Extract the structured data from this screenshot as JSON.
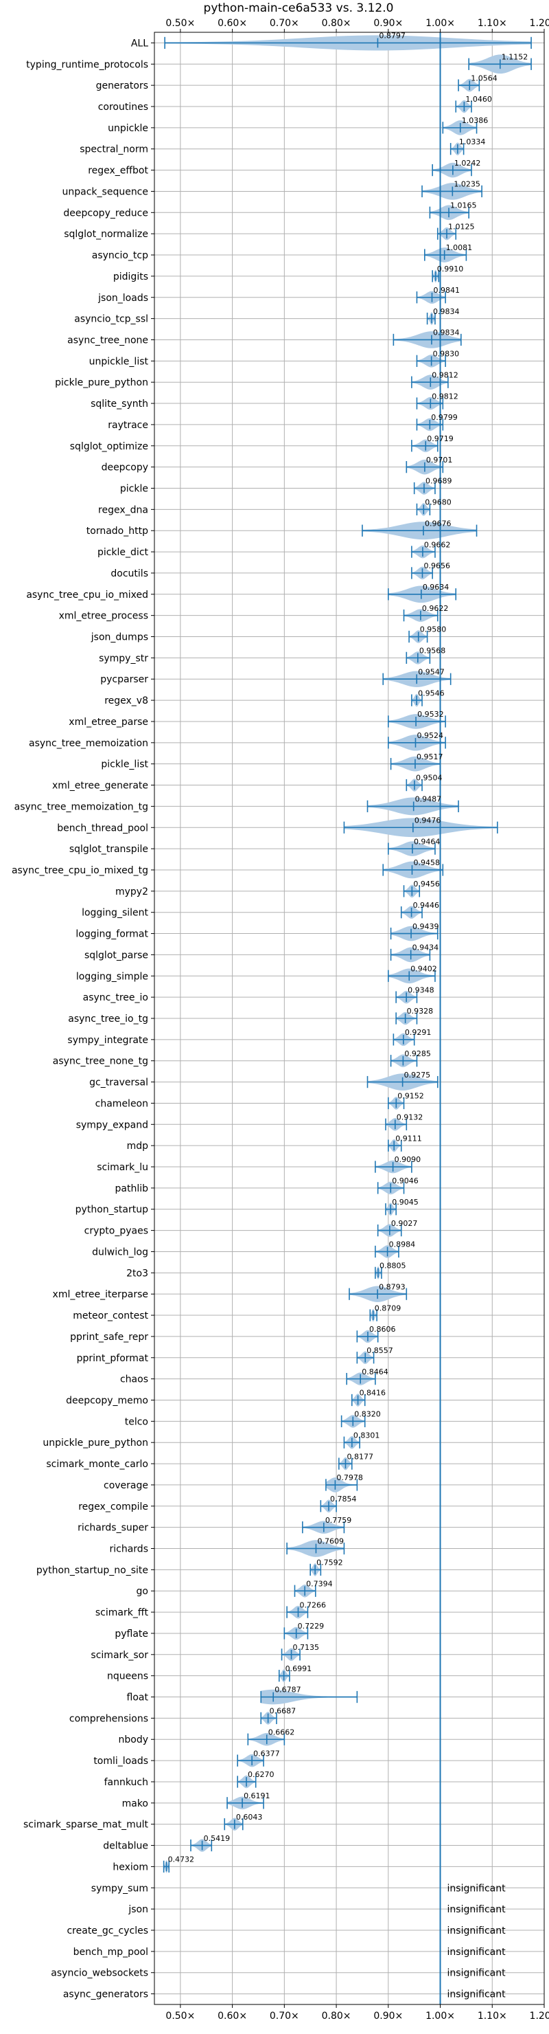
{
  "chart_data": {
    "type": "violin",
    "title": "python-main-ce6a533 vs. 3.12.0",
    "xlim": [
      0.45,
      1.2
    ],
    "xticks": [
      0.5,
      0.6,
      0.7,
      0.8,
      0.9,
      1.0,
      1.1,
      1.2
    ],
    "xtick_labels": [
      "0.50×",
      "0.60×",
      "0.70×",
      "0.80×",
      "0.90×",
      "1.00×",
      "1.10×",
      "1.20×"
    ],
    "reference_line": 1.0,
    "grid": true,
    "insignificant_text": "insignificant",
    "colors": {
      "violin": "#aecbe5",
      "whisker": "#1f77b4",
      "reference": "#1f77b4"
    },
    "benchmarks": [
      {
        "name": "ALL",
        "label": "0.8797",
        "value": 0.8797,
        "min": 0.47,
        "max": 1.175,
        "half_width": 0.36
      },
      {
        "name": "typing_runtime_protocols",
        "label": "1.1152",
        "value": 1.1152,
        "min": 1.055,
        "max": 1.175,
        "half_width": 0.45
      },
      {
        "name": "generators",
        "label": "1.0564",
        "value": 1.0564,
        "min": 1.035,
        "max": 1.075,
        "half_width": 0.3
      },
      {
        "name": "coroutines",
        "label": "1.0460",
        "value": 1.046,
        "min": 1.03,
        "max": 1.06,
        "half_width": 0.3
      },
      {
        "name": "unpickle",
        "label": "1.0386",
        "value": 1.0386,
        "min": 1.005,
        "max": 1.07,
        "half_width": 0.35
      },
      {
        "name": "spectral_norm",
        "label": "1.0334",
        "value": 1.0334,
        "min": 1.02,
        "max": 1.045,
        "half_width": 0.3
      },
      {
        "name": "regex_effbot",
        "label": "1.0242",
        "value": 1.0242,
        "min": 0.985,
        "max": 1.06,
        "half_width": 0.35
      },
      {
        "name": "unpack_sequence",
        "label": "1.0235",
        "value": 1.0235,
        "min": 0.965,
        "max": 1.08,
        "half_width": 0.4
      },
      {
        "name": "deepcopy_reduce",
        "label": "1.0165",
        "value": 1.0165,
        "min": 0.98,
        "max": 1.055,
        "half_width": 0.35
      },
      {
        "name": "sqlglot_normalize",
        "label": "1.0125",
        "value": 1.0125,
        "min": 0.995,
        "max": 1.03,
        "half_width": 0.3
      },
      {
        "name": "asyncio_tcp",
        "label": "1.0081",
        "value": 1.0081,
        "min": 0.97,
        "max": 1.05,
        "half_width": 0.35
      },
      {
        "name": "pidigits",
        "label": "0.9910",
        "value": 0.991,
        "min": 0.985,
        "max": 0.997,
        "half_width": 0.3
      },
      {
        "name": "json_loads",
        "label": "0.9841",
        "value": 0.9841,
        "min": 0.955,
        "max": 1.01,
        "half_width": 0.3
      },
      {
        "name": "asyncio_tcp_ssl",
        "label": "0.9834",
        "value": 0.9834,
        "min": 0.975,
        "max": 0.99,
        "half_width": 0.3
      },
      {
        "name": "async_tree_none",
        "label": "0.9834",
        "value": 0.9834,
        "min": 0.91,
        "max": 1.04,
        "half_width": 0.4
      },
      {
        "name": "unpickle_list",
        "label": "0.9830",
        "value": 0.983,
        "min": 0.955,
        "max": 1.01,
        "half_width": 0.3
      },
      {
        "name": "pickle_pure_python",
        "label": "0.9812",
        "value": 0.9812,
        "min": 0.945,
        "max": 1.015,
        "half_width": 0.35
      },
      {
        "name": "sqlite_synth",
        "label": "0.9812",
        "value": 0.9812,
        "min": 0.955,
        "max": 1.005,
        "half_width": 0.3
      },
      {
        "name": "raytrace",
        "label": "0.9799",
        "value": 0.9799,
        "min": 0.955,
        "max": 1.005,
        "half_width": 0.3
      },
      {
        "name": "sqlglot_optimize",
        "label": "0.9719",
        "value": 0.9719,
        "min": 0.945,
        "max": 0.995,
        "half_width": 0.3
      },
      {
        "name": "deepcopy",
        "label": "0.9701",
        "value": 0.9701,
        "min": 0.935,
        "max": 1.005,
        "half_width": 0.35
      },
      {
        "name": "pickle",
        "label": "0.9689",
        "value": 0.9689,
        "min": 0.95,
        "max": 0.99,
        "half_width": 0.3
      },
      {
        "name": "regex_dna",
        "label": "0.9680",
        "value": 0.968,
        "min": 0.955,
        "max": 0.98,
        "half_width": 0.3
      },
      {
        "name": "tornado_http",
        "label": "0.9676",
        "value": 0.9676,
        "min": 0.85,
        "max": 1.07,
        "half_width": 0.42
      },
      {
        "name": "pickle_dict",
        "label": "0.9662",
        "value": 0.9662,
        "min": 0.945,
        "max": 0.99,
        "half_width": 0.3
      },
      {
        "name": "docutils",
        "label": "0.9656",
        "value": 0.9656,
        "min": 0.945,
        "max": 0.985,
        "half_width": 0.3
      },
      {
        "name": "async_tree_cpu_io_mixed",
        "label": "0.9634",
        "value": 0.9634,
        "min": 0.9,
        "max": 1.03,
        "half_width": 0.4
      },
      {
        "name": "xml_etree_process",
        "label": "0.9622",
        "value": 0.9622,
        "min": 0.93,
        "max": 0.995,
        "half_width": 0.3
      },
      {
        "name": "json_dumps",
        "label": "0.9580",
        "value": 0.958,
        "min": 0.94,
        "max": 0.975,
        "half_width": 0.3
      },
      {
        "name": "sympy_str",
        "label": "0.9568",
        "value": 0.9568,
        "min": 0.935,
        "max": 0.98,
        "half_width": 0.3
      },
      {
        "name": "pycparser",
        "label": "0.9547",
        "value": 0.9547,
        "min": 0.89,
        "max": 1.02,
        "half_width": 0.38
      },
      {
        "name": "regex_v8",
        "label": "0.9546",
        "value": 0.9546,
        "min": 0.945,
        "max": 0.965,
        "half_width": 0.3
      },
      {
        "name": "xml_etree_parse",
        "label": "0.9532",
        "value": 0.9532,
        "min": 0.9,
        "max": 1.01,
        "half_width": 0.35
      },
      {
        "name": "async_tree_memoization",
        "label": "0.9524",
        "value": 0.9524,
        "min": 0.9,
        "max": 1.01,
        "half_width": 0.38
      },
      {
        "name": "pickle_list",
        "label": "0.9517",
        "value": 0.9517,
        "min": 0.905,
        "max": 1.0,
        "half_width": 0.35
      },
      {
        "name": "xml_etree_generate",
        "label": "0.9504",
        "value": 0.9504,
        "min": 0.935,
        "max": 0.965,
        "half_width": 0.3
      },
      {
        "name": "async_tree_memoization_tg",
        "label": "0.9487",
        "value": 0.9487,
        "min": 0.86,
        "max": 1.035,
        "half_width": 0.42
      },
      {
        "name": "bench_thread_pool",
        "label": "0.9476",
        "value": 0.9476,
        "min": 0.815,
        "max": 1.11,
        "half_width": 0.45
      },
      {
        "name": "sqlglot_transpile",
        "label": "0.9464",
        "value": 0.9464,
        "min": 0.9,
        "max": 0.99,
        "half_width": 0.35
      },
      {
        "name": "async_tree_cpu_io_mixed_tg",
        "label": "0.9458",
        "value": 0.9458,
        "min": 0.89,
        "max": 1.005,
        "half_width": 0.4
      },
      {
        "name": "mypy2",
        "label": "0.9456",
        "value": 0.9456,
        "min": 0.93,
        "max": 0.96,
        "half_width": 0.3
      },
      {
        "name": "logging_silent",
        "label": "0.9446",
        "value": 0.9446,
        "min": 0.925,
        "max": 0.965,
        "half_width": 0.3
      },
      {
        "name": "logging_format",
        "label": "0.9439",
        "value": 0.9439,
        "min": 0.905,
        "max": 0.995,
        "half_width": 0.35
      },
      {
        "name": "sqlglot_parse",
        "label": "0.9434",
        "value": 0.9434,
        "min": 0.905,
        "max": 0.98,
        "half_width": 0.35
      },
      {
        "name": "logging_simple",
        "label": "0.9402",
        "value": 0.9402,
        "min": 0.9,
        "max": 0.99,
        "half_width": 0.35
      },
      {
        "name": "async_tree_io",
        "label": "0.9348",
        "value": 0.9348,
        "min": 0.915,
        "max": 0.955,
        "half_width": 0.3
      },
      {
        "name": "async_tree_io_tg",
        "label": "0.9328",
        "value": 0.9328,
        "min": 0.915,
        "max": 0.955,
        "half_width": 0.3
      },
      {
        "name": "sympy_integrate",
        "label": "0.9291",
        "value": 0.9291,
        "min": 0.91,
        "max": 0.95,
        "half_width": 0.3
      },
      {
        "name": "async_tree_none_tg",
        "label": "0.9285",
        "value": 0.9285,
        "min": 0.905,
        "max": 0.955,
        "half_width": 0.3
      },
      {
        "name": "gc_traversal",
        "label": "0.9275",
        "value": 0.9275,
        "min": 0.86,
        "max": 0.995,
        "half_width": 0.4
      },
      {
        "name": "chameleon",
        "label": "0.9152",
        "value": 0.9152,
        "min": 0.9,
        "max": 0.93,
        "half_width": 0.3
      },
      {
        "name": "sympy_expand",
        "label": "0.9132",
        "value": 0.9132,
        "min": 0.895,
        "max": 0.935,
        "half_width": 0.3
      },
      {
        "name": "mdp",
        "label": "0.9111",
        "value": 0.9111,
        "min": 0.9,
        "max": 0.925,
        "half_width": 0.3
      },
      {
        "name": "scimark_lu",
        "label": "0.9090",
        "value": 0.909,
        "min": 0.875,
        "max": 0.945,
        "half_width": 0.3
      },
      {
        "name": "pathlib",
        "label": "0.9046",
        "value": 0.9046,
        "min": 0.88,
        "max": 0.93,
        "half_width": 0.3
      },
      {
        "name": "python_startup",
        "label": "0.9045",
        "value": 0.9045,
        "min": 0.895,
        "max": 0.915,
        "half_width": 0.3
      },
      {
        "name": "crypto_pyaes",
        "label": "0.9027",
        "value": 0.9027,
        "min": 0.88,
        "max": 0.925,
        "half_width": 0.3
      },
      {
        "name": "dulwich_log",
        "label": "0.8984",
        "value": 0.8984,
        "min": 0.875,
        "max": 0.92,
        "half_width": 0.3
      },
      {
        "name": "2to3",
        "label": "0.8805",
        "value": 0.8805,
        "min": 0.875,
        "max": 0.887,
        "half_width": 0.3
      },
      {
        "name": "xml_etree_iterparse",
        "label": "0.8793",
        "value": 0.8793,
        "min": 0.825,
        "max": 0.935,
        "half_width": 0.38
      },
      {
        "name": "meteor_contest",
        "label": "0.8709",
        "value": 0.8709,
        "min": 0.865,
        "max": 0.878,
        "half_width": 0.3
      },
      {
        "name": "pprint_safe_repr",
        "label": "0.8606",
        "value": 0.8606,
        "min": 0.84,
        "max": 0.88,
        "half_width": 0.3
      },
      {
        "name": "pprint_pformat",
        "label": "0.8557",
        "value": 0.8557,
        "min": 0.84,
        "max": 0.872,
        "half_width": 0.3
      },
      {
        "name": "chaos",
        "label": "0.8464",
        "value": 0.8464,
        "min": 0.82,
        "max": 0.875,
        "half_width": 0.3
      },
      {
        "name": "deepcopy_memo",
        "label": "0.8416",
        "value": 0.8416,
        "min": 0.83,
        "max": 0.855,
        "half_width": 0.3
      },
      {
        "name": "telco",
        "label": "0.8320",
        "value": 0.832,
        "min": 0.81,
        "max": 0.855,
        "half_width": 0.3
      },
      {
        "name": "unpickle_pure_python",
        "label": "0.8301",
        "value": 0.8301,
        "min": 0.815,
        "max": 0.845,
        "half_width": 0.3
      },
      {
        "name": "scimark_monte_carlo",
        "label": "0.8177",
        "value": 0.8177,
        "min": 0.805,
        "max": 0.83,
        "half_width": 0.3
      },
      {
        "name": "coverage",
        "label": "0.7978",
        "value": 0.7978,
        "min": 0.78,
        "max": 0.84,
        "half_width": 0.35
      },
      {
        "name": "regex_compile",
        "label": "0.7854",
        "value": 0.7854,
        "min": 0.77,
        "max": 0.8,
        "half_width": 0.3
      },
      {
        "name": "richards_super",
        "label": "0.7759",
        "value": 0.7759,
        "min": 0.735,
        "max": 0.815,
        "half_width": 0.3
      },
      {
        "name": "richards",
        "label": "0.7609",
        "value": 0.7609,
        "min": 0.705,
        "max": 0.815,
        "half_width": 0.4
      },
      {
        "name": "python_startup_no_site",
        "label": "0.7592",
        "value": 0.7592,
        "min": 0.75,
        "max": 0.77,
        "half_width": 0.3
      },
      {
        "name": "go",
        "label": "0.7394",
        "value": 0.7394,
        "min": 0.72,
        "max": 0.76,
        "half_width": 0.3
      },
      {
        "name": "scimark_fft",
        "label": "0.7266",
        "value": 0.7266,
        "min": 0.705,
        "max": 0.745,
        "half_width": 0.3
      },
      {
        "name": "pyflate",
        "label": "0.7229",
        "value": 0.7229,
        "min": 0.7,
        "max": 0.745,
        "half_width": 0.3
      },
      {
        "name": "scimark_sor",
        "label": "0.7135",
        "value": 0.7135,
        "min": 0.695,
        "max": 0.73,
        "half_width": 0.3
      },
      {
        "name": "nqueens",
        "label": "0.6991",
        "value": 0.6991,
        "min": 0.69,
        "max": 0.71,
        "half_width": 0.3
      },
      {
        "name": "float",
        "label": "0.6787",
        "value": 0.6787,
        "min": 0.655,
        "max": 0.84,
        "half_width": 0.35
      },
      {
        "name": "comprehensions",
        "label": "0.6687",
        "value": 0.6687,
        "min": 0.655,
        "max": 0.685,
        "half_width": 0.3
      },
      {
        "name": "nbody",
        "label": "0.6662",
        "value": 0.6662,
        "min": 0.63,
        "max": 0.7,
        "half_width": 0.3
      },
      {
        "name": "tomli_loads",
        "label": "0.6377",
        "value": 0.6377,
        "min": 0.61,
        "max": 0.66,
        "half_width": 0.3
      },
      {
        "name": "fannkuch",
        "label": "0.6270",
        "value": 0.627,
        "min": 0.61,
        "max": 0.645,
        "half_width": 0.3
      },
      {
        "name": "mako",
        "label": "0.6191",
        "value": 0.6191,
        "min": 0.59,
        "max": 0.66,
        "half_width": 0.3
      },
      {
        "name": "scimark_sparse_mat_mult",
        "label": "0.6043",
        "value": 0.6043,
        "min": 0.585,
        "max": 0.62,
        "half_width": 0.3
      },
      {
        "name": "deltablue",
        "label": "0.5419",
        "value": 0.5419,
        "min": 0.52,
        "max": 0.56,
        "half_width": 0.3
      },
      {
        "name": "hexiom",
        "label": "0.4732",
        "value": 0.4732,
        "min": 0.468,
        "max": 0.478,
        "half_width": 0.3
      },
      {
        "name": "sympy_sum",
        "insignificant": true
      },
      {
        "name": "json",
        "insignificant": true
      },
      {
        "name": "create_gc_cycles",
        "insignificant": true
      },
      {
        "name": "bench_mp_pool",
        "insignificant": true
      },
      {
        "name": "asyncio_websockets",
        "insignificant": true
      },
      {
        "name": "async_generators",
        "insignificant": true
      }
    ]
  }
}
